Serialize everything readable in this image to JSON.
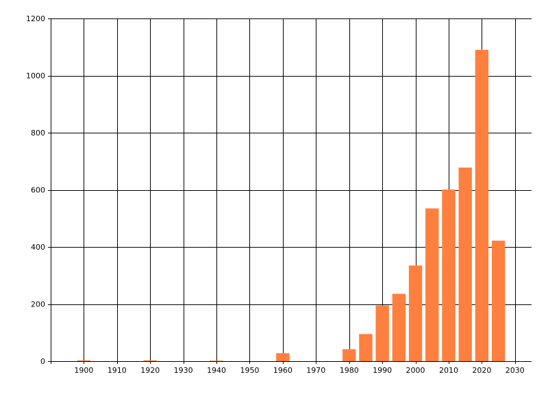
{
  "chart_data": {
    "type": "bar",
    "x": [
      1900,
      1920,
      1940,
      1960,
      1980,
      1985,
      1990,
      1995,
      2000,
      2005,
      2010,
      2015,
      2020,
      2025
    ],
    "values": [
      3,
      3,
      2,
      28,
      42,
      95,
      195,
      236,
      335,
      535,
      601,
      678,
      1090,
      422
    ],
    "xticks": [
      1900,
      1910,
      1920,
      1930,
      1940,
      1950,
      1960,
      1970,
      1980,
      1990,
      2000,
      2010,
      2020,
      2030
    ],
    "xlim": [
      1890,
      2035
    ],
    "yticks": [
      0,
      200,
      400,
      600,
      800,
      1000,
      1200
    ],
    "ylim": [
      0,
      1200
    ],
    "bar_width": 4,
    "grid": true,
    "legend": "none",
    "bar_color": "#FF7F3F",
    "grid_color": "#000000"
  }
}
